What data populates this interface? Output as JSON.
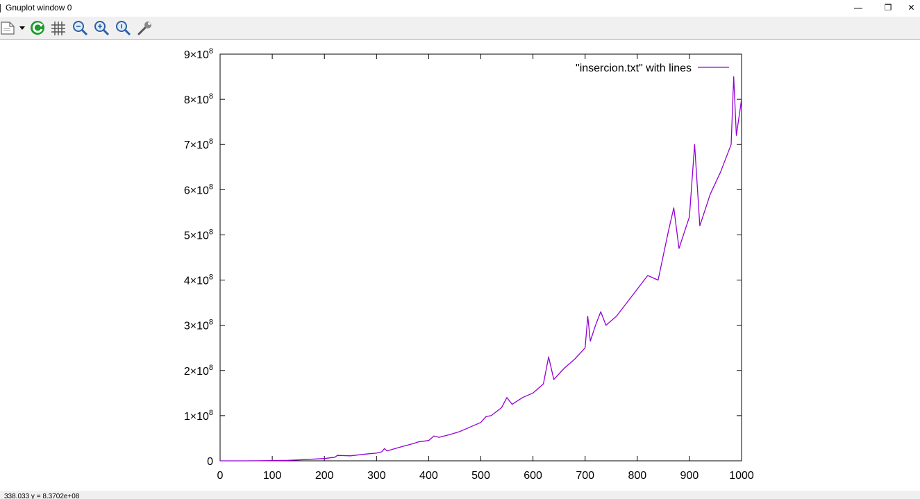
{
  "window": {
    "title": "Gnuplot window 0",
    "minimize_glyph": "—",
    "restore_glyph": "❐",
    "close_glyph": "✕"
  },
  "toolbar": {
    "items": [
      {
        "name": "copy-to-clipboard-icon"
      },
      {
        "name": "dropdown-arrow-icon"
      },
      {
        "name": "replot-icon"
      },
      {
        "name": "grid-icon"
      },
      {
        "name": "zoom-previous-icon"
      },
      {
        "name": "zoom-next-icon"
      },
      {
        "name": "unzoom-icon"
      },
      {
        "name": "options-wrench-icon"
      }
    ]
  },
  "status": {
    "text": "338.033 y = 8.3702e+08"
  },
  "colors": {
    "series": "#9400d3",
    "axes": "#000000"
  },
  "chart_data": {
    "type": "line",
    "title": "",
    "xlabel": "",
    "ylabel": "",
    "xlim": [
      0,
      1000
    ],
    "ylim": [
      0,
      900000000
    ],
    "x_ticks": [
      0,
      100,
      200,
      300,
      400,
      500,
      600,
      700,
      800,
      900,
      1000
    ],
    "x_tick_labels": [
      "0",
      "100",
      "200",
      "300",
      "400",
      "500",
      "600",
      "700",
      "800",
      "900",
      "1000"
    ],
    "y_ticks": [
      0,
      100000000,
      200000000,
      300000000,
      400000000,
      500000000,
      600000000,
      700000000,
      800000000,
      900000000
    ],
    "y_tick_labels": [
      {
        "mant": "0",
        "exp": ""
      },
      {
        "mant": "1×10",
        "exp": "8"
      },
      {
        "mant": "2×10",
        "exp": "8"
      },
      {
        "mant": "3×10",
        "exp": "8"
      },
      {
        "mant": "4×10",
        "exp": "8"
      },
      {
        "mant": "5×10",
        "exp": "8"
      },
      {
        "mant": "6×10",
        "exp": "8"
      },
      {
        "mant": "7×10",
        "exp": "8"
      },
      {
        "mant": "8×10",
        "exp": "8"
      },
      {
        "mant": "9×10",
        "exp": "8"
      }
    ],
    "grid": false,
    "legend_position": "top-right",
    "series": [
      {
        "name": "\"insercion.txt\" with lines",
        "x": [
          0,
          50,
          100,
          130,
          150,
          200,
          220,
          225,
          250,
          280,
          300,
          310,
          315,
          320,
          350,
          370,
          380,
          400,
          410,
          420,
          440,
          460,
          480,
          500,
          510,
          520,
          540,
          550,
          560,
          580,
          600,
          620,
          630,
          640,
          660,
          680,
          700,
          705,
          710,
          720,
          730,
          740,
          760,
          780,
          800,
          820,
          840,
          860,
          870,
          880,
          900,
          910,
          920,
          940,
          960,
          980,
          985,
          990,
          1000
        ],
        "y": [
          0,
          0,
          500000,
          1000000,
          2000000,
          5000000,
          8000000,
          12000000,
          11000000,
          15000000,
          17000000,
          20000000,
          27000000,
          22000000,
          32000000,
          38000000,
          42000000,
          45000000,
          55000000,
          52000000,
          58000000,
          65000000,
          75000000,
          85000000,
          98000000,
          100000000,
          118000000,
          140000000,
          125000000,
          140000000,
          150000000,
          170000000,
          230000000,
          180000000,
          205000000,
          225000000,
          250000000,
          320000000,
          265000000,
          300000000,
          330000000,
          300000000,
          320000000,
          350000000,
          380000000,
          410000000,
          400000000,
          510000000,
          560000000,
          470000000,
          540000000,
          700000000,
          520000000,
          590000000,
          640000000,
          700000000,
          850000000,
          720000000,
          800000000
        ]
      }
    ]
  }
}
